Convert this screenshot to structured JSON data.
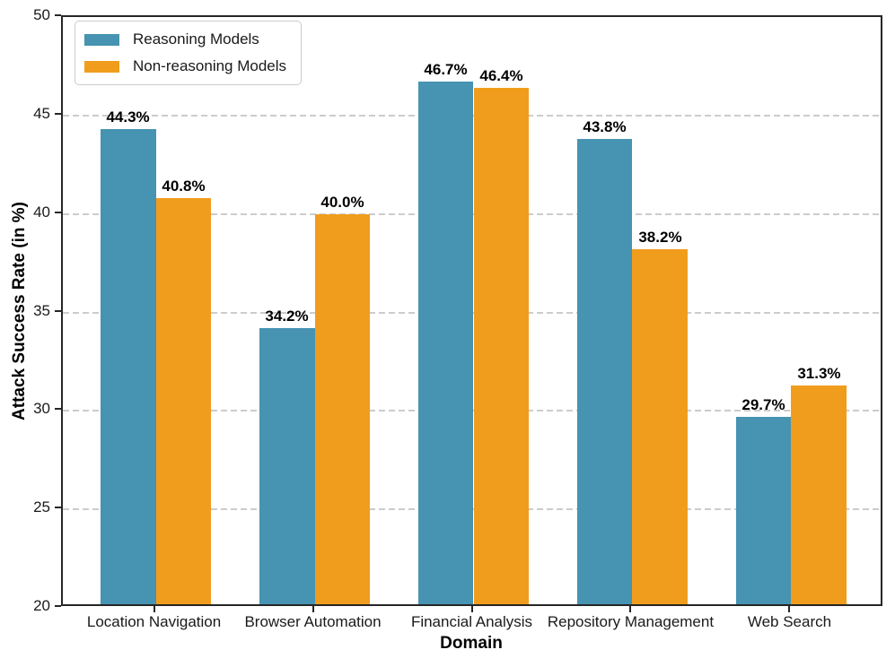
{
  "chart_data": {
    "type": "bar",
    "title": "",
    "xlabel": "Domain",
    "ylabel": "Attack Success Rate (in %)",
    "categories": [
      "Location Navigation",
      "Browser Automation",
      "Financial Analysis",
      "Repository Management",
      "Web Search"
    ],
    "series": [
      {
        "name": "Reasoning Models",
        "color": "#4693B2",
        "values": [
          44.3,
          34.2,
          46.7,
          43.8,
          29.7
        ],
        "labels": [
          "44.3%",
          "34.2%",
          "46.7%",
          "43.8%",
          "29.7%"
        ]
      },
      {
        "name": "Non-reasoning Models",
        "color": "#F09D1D",
        "values": [
          40.8,
          40.0,
          46.4,
          38.2,
          31.3
        ],
        "labels": [
          "40.8%",
          "40.0%",
          "46.4%",
          "38.2%",
          "31.3%"
        ]
      }
    ],
    "ylim": [
      20,
      50
    ],
    "yticks": [
      20,
      25,
      30,
      35,
      40,
      45,
      50
    ],
    "grid": "horizontal dashed",
    "legend_position": "upper left"
  }
}
